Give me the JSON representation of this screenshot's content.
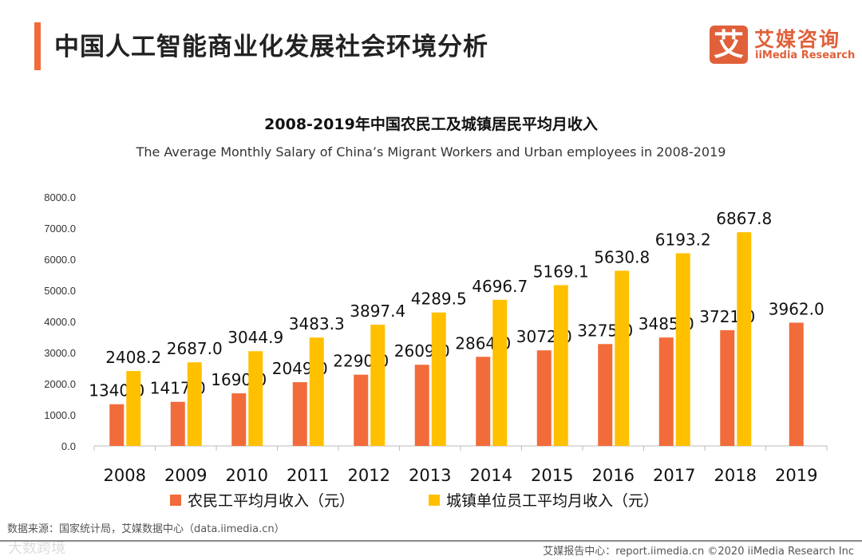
{
  "header": {
    "title": "中国人工智能商业化发展社会环境分析",
    "logo_mark": "艾",
    "logo_cn": "艾媒咨询",
    "logo_en": "iiMedia Research"
  },
  "chart_data": {
    "type": "bar",
    "title": "2008-2019年中国农民工及城镇居民平均月收入",
    "subtitle": "The Average Monthly Salary of China’s Migrant Workers and Urban employees in 2008-2019",
    "categories": [
      "2008",
      "2009",
      "2010",
      "2011",
      "2012",
      "2013",
      "2014",
      "2015",
      "2016",
      "2017",
      "2018",
      "2019"
    ],
    "series": [
      {
        "name": "农民工平均月收入（元）",
        "color": "#f26b3a",
        "values": [
          1340.0,
          1417.0,
          1690.0,
          2049.0,
          2290.0,
          2609.0,
          2864.0,
          3072.0,
          3275.0,
          3485.0,
          3721.0,
          3962.0
        ]
      },
      {
        "name": "城镇单位员工平均月收入（元）",
        "color": "#ffc000",
        "values": [
          2408.2,
          2687.0,
          3044.9,
          3483.3,
          3897.4,
          4289.5,
          4696.7,
          5169.1,
          5630.8,
          6193.2,
          6867.8,
          null
        ]
      }
    ],
    "yticks": [
      "0.0",
      "1000.0",
      "2000.0",
      "3000.0",
      "4000.0",
      "5000.0",
      "6000.0",
      "7000.0",
      "8000.0"
    ],
    "ylim": [
      0,
      8000
    ],
    "legend": "bottom"
  },
  "footer": {
    "source": "数据来源：国家统计局，艾媒数据中心（data.iimedia.cn）",
    "watermark": "大数跨境",
    "copyright": "艾媒报告中心：report.iimedia.cn   ©2020  iiMedia Research  Inc"
  }
}
